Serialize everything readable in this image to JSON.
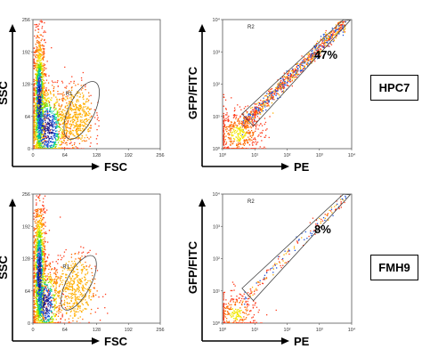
{
  "sample_labels": [
    "HPC7",
    "FMH9"
  ],
  "chart_data": [
    {
      "type": "scatter",
      "panel": "HPC7 scatter",
      "xlabel": "FSC",
      "ylabel": "SSC",
      "xlim": [
        0,
        256
      ],
      "ylim": [
        0,
        256
      ],
      "x_ticks": [
        "0",
        "64",
        "128",
        "192",
        "256"
      ],
      "y_ticks": [
        "0",
        "64",
        "128",
        "192",
        "256"
      ],
      "gate_label": "R1",
      "gate": {
        "cx": 98,
        "cy": 76,
        "rx": 26,
        "ry": 62,
        "angle_deg": 25
      },
      "populations": [
        {
          "cx": 12,
          "cy": 90,
          "sx": 6,
          "sy": 70,
          "n": 1400
        },
        {
          "cx": 28,
          "cy": 40,
          "sx": 22,
          "sy": 45,
          "n": 900
        },
        {
          "cx": 85,
          "cy": 65,
          "sx": 18,
          "sy": 32,
          "n": 500
        }
      ]
    },
    {
      "type": "scatter",
      "panel": "HPC7 fluorescence",
      "xlabel": "PE",
      "ylabel": "GFP/FITC",
      "log_scale": true,
      "xlim": [
        1,
        10000
      ],
      "ylim": [
        1,
        10000
      ],
      "x_ticks": [
        "10⁰",
        "10¹",
        "10²",
        "10³",
        "10⁴"
      ],
      "y_ticks": [
        "10⁰",
        "10¹",
        "10²",
        "10³",
        "10⁴"
      ],
      "gate_label": "R2",
      "percent": "47%",
      "populations": [
        {
          "diagonal": true,
          "n": 900
        },
        {
          "cx": 3,
          "cy": 3,
          "spread": 0.4,
          "n": 500
        }
      ]
    },
    {
      "type": "scatter",
      "panel": "FMH9 scatter",
      "xlabel": "FSC",
      "ylabel": "SSC",
      "xlim": [
        0,
        256
      ],
      "ylim": [
        0,
        256
      ],
      "x_ticks": [
        "0",
        "64",
        "128",
        "192",
        "256"
      ],
      "y_ticks": [
        "0",
        "64",
        "128",
        "192",
        "256"
      ],
      "gate_label": "R1",
      "gate": {
        "cx": 92,
        "cy": 80,
        "rx": 24,
        "ry": 60,
        "angle_deg": 28
      },
      "populations": [
        {
          "cx": 12,
          "cy": 95,
          "sx": 6,
          "sy": 75,
          "n": 1400
        },
        {
          "cx": 25,
          "cy": 40,
          "sx": 15,
          "sy": 40,
          "n": 600
        },
        {
          "cx": 82,
          "cy": 68,
          "sx": 22,
          "sy": 35,
          "n": 500
        }
      ]
    },
    {
      "type": "scatter",
      "panel": "FMH9 fluorescence",
      "xlabel": "PE",
      "ylabel": "GFP/FITC",
      "log_scale": true,
      "xlim": [
        1,
        10000
      ],
      "ylim": [
        1,
        10000
      ],
      "x_ticks": [
        "10⁰",
        "10¹",
        "10²",
        "10³",
        "10⁴"
      ],
      "y_ticks": [
        "10⁰",
        "10¹",
        "10²",
        "10³",
        "10⁴"
      ],
      "gate_label": "R2",
      "percent": "8%",
      "populations": [
        {
          "diagonal": true,
          "n": 150
        },
        {
          "cx": 2.5,
          "cy": 2,
          "spread": 0.35,
          "n": 300
        }
      ]
    }
  ]
}
